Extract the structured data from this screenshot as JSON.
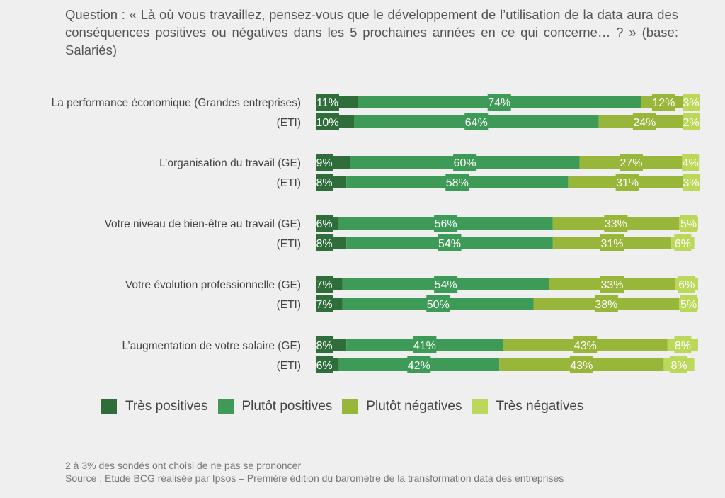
{
  "question": "Question : « Là où vous travaillez, pensez-vous que le développement de l’utilisation de la data aura des conséquences positives ou négatives dans les 5 prochaines années en ce qui concerne… ? » (base: Salariés)",
  "footnote": "2 à 3% des sondés ont choisi de ne pas se prononcer",
  "source": "Source : Etude BCG réalisée par Ipsos – Première édition du baromètre de la transformation data des entreprises",
  "chart_data": {
    "type": "bar",
    "stacked": true,
    "orientation": "horizontal",
    "unit": "%",
    "categories": [
      "La performance économique (Grandes entreprises)",
      "(ETI)",
      "L’organisation du travail (GE)",
      "(ETI)",
      "Votre niveau de bien-être au travail (GE)",
      "(ETI)",
      "Votre évolution professionnelle (GE)",
      "(ETI)",
      "L’augmentation de votre salaire (GE)",
      "(ETI)"
    ],
    "series": [
      {
        "name": "Très positives",
        "color": "#2f6e3b",
        "values": [
          11,
          10,
          9,
          8,
          6,
          8,
          7,
          7,
          8,
          6
        ]
      },
      {
        "name": "Plutôt positives",
        "color": "#3e9a57",
        "values": [
          74,
          64,
          60,
          58,
          56,
          54,
          54,
          50,
          41,
          42
        ]
      },
      {
        "name": "Plutôt négatives",
        "color": "#98b63a",
        "values": [
          12,
          24,
          27,
          31,
          33,
          31,
          33,
          38,
          43,
          43
        ]
      },
      {
        "name": "Très négatives",
        "color": "#bcd85a",
        "values": [
          3,
          2,
          4,
          3,
          5,
          6,
          6,
          5,
          8,
          8
        ]
      }
    ],
    "legend_position": "bottom",
    "grid": false
  }
}
